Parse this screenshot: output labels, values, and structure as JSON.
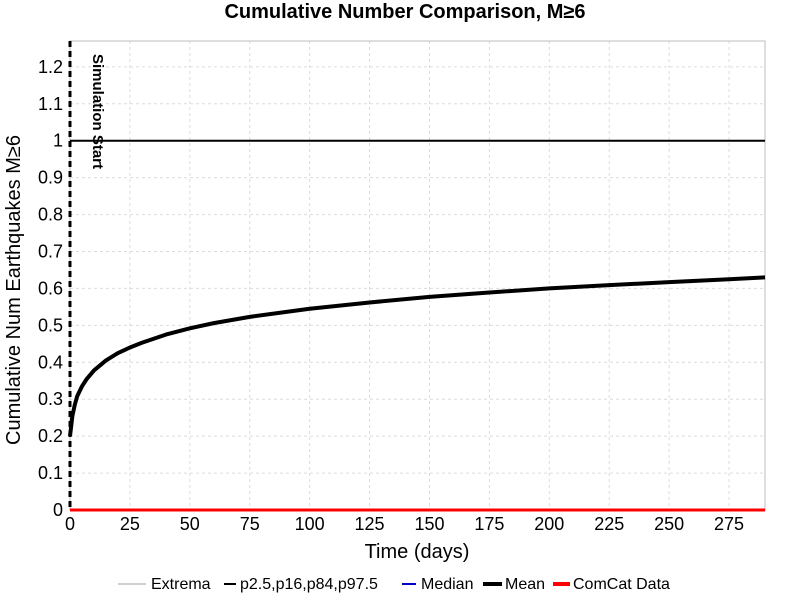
{
  "chart_data": {
    "type": "line",
    "title": "Cumulative Number Comparison, M≥6",
    "xlabel": "Time (days)",
    "ylabel": "Cumulative Num Earthquakes M≥6",
    "xlim": [
      0,
      290
    ],
    "ylim": [
      0,
      1.27
    ],
    "xticks": [
      0,
      25,
      50,
      75,
      100,
      125,
      150,
      175,
      200,
      225,
      250,
      275
    ],
    "xtick_labels": [
      "0",
      "25",
      "50",
      "75",
      "100",
      "125",
      "150",
      "175",
      "200",
      "225",
      "250",
      "275"
    ],
    "yticks": [
      0,
      0.1,
      0.2,
      0.3,
      0.4,
      0.5,
      0.6,
      0.7,
      0.8,
      0.9,
      1,
      1.1,
      1.2
    ],
    "ytick_labels": [
      "0",
      "0.1",
      "0.2",
      "0.3",
      "0.4",
      "0.5",
      "0.6",
      "0.7",
      "0.8",
      "0.9",
      "1",
      "1.1",
      "1.2"
    ],
    "grid": true,
    "legend_position": "bottom",
    "legend": [
      {
        "label": "Extrema",
        "color": "#a0a0a0",
        "style": "thin"
      },
      {
        "label": "p2.5,p16,p84,p97.5",
        "color": "#000000",
        "style": "medium"
      },
      {
        "label": "Median",
        "color": "#0000c8",
        "style": "medium"
      },
      {
        "label": "Mean",
        "color": "#000000",
        "style": "thick"
      },
      {
        "label": "ComCat Data",
        "color": "#ff0000",
        "style": "thick"
      }
    ],
    "series": [
      {
        "name": "Mean",
        "color": "#000000",
        "x": [
          0,
          1,
          2,
          3,
          5,
          7,
          10,
          15,
          20,
          25,
          30,
          40,
          50,
          60,
          75,
          100,
          125,
          150,
          175,
          200,
          225,
          250,
          275,
          290
        ],
        "y": [
          0.2,
          0.255,
          0.285,
          0.308,
          0.335,
          0.355,
          0.378,
          0.405,
          0.425,
          0.44,
          0.453,
          0.475,
          0.492,
          0.506,
          0.523,
          0.545,
          0.562,
          0.577,
          0.589,
          0.6,
          0.609,
          0.617,
          0.625,
          0.63
        ]
      },
      {
        "name": "ComCat Data",
        "color": "#ff0000",
        "x": [
          0,
          290
        ],
        "y": [
          0,
          0
        ]
      },
      {
        "name": "Extrema",
        "color": "#000000",
        "x": [
          0,
          290
        ],
        "y": [
          1,
          1
        ]
      }
    ],
    "annotations": [
      {
        "text": "Simulation Start",
        "x": 0
      }
    ],
    "colors": {
      "mean": "#000000",
      "comcat": "#ff0000",
      "median": "#0000c8",
      "extrema": "#a0a0a0",
      "grid": "#dcdcdc"
    }
  }
}
